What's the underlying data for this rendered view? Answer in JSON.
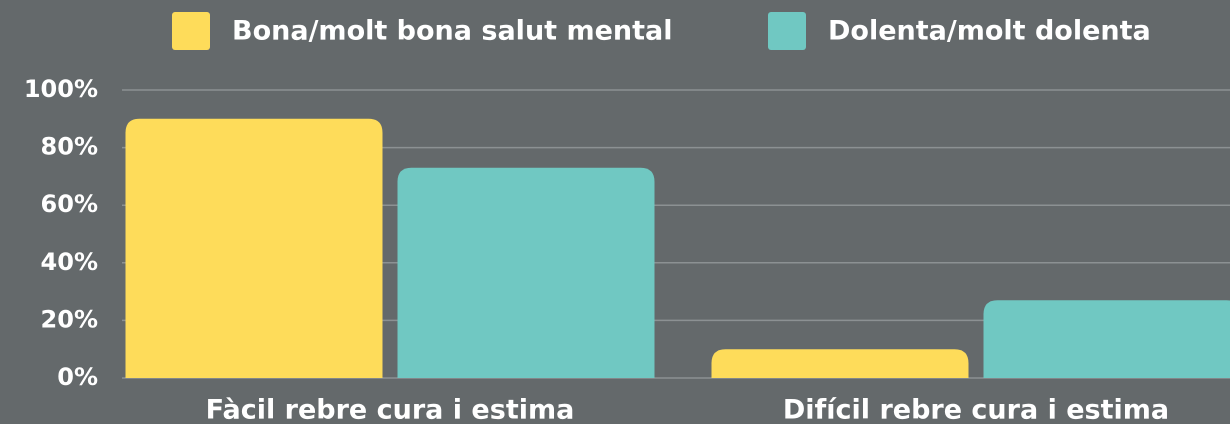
{
  "chart_data": {
    "type": "bar",
    "categories": [
      "Fàcil rebre cura i estima",
      "Difícil rebre cura i estima"
    ],
    "series": [
      {
        "name": "Bona/molt bona salut mental",
        "color": "#fedc5a",
        "values": [
          90,
          10
        ]
      },
      {
        "name": "Dolenta/molt dolenta",
        "color": "#70c8c2",
        "values": [
          73,
          27
        ]
      }
    ],
    "ylim": [
      0,
      100
    ],
    "yticks": [
      {
        "value": 0,
        "label": "0%"
      },
      {
        "value": 20,
        "label": "20%"
      },
      {
        "value": 40,
        "label": "40%"
      },
      {
        "value": 60,
        "label": "60%"
      },
      {
        "value": 80,
        "label": "80%"
      },
      {
        "value": 100,
        "label": "100%"
      }
    ],
    "grid": true,
    "legend": "top"
  }
}
